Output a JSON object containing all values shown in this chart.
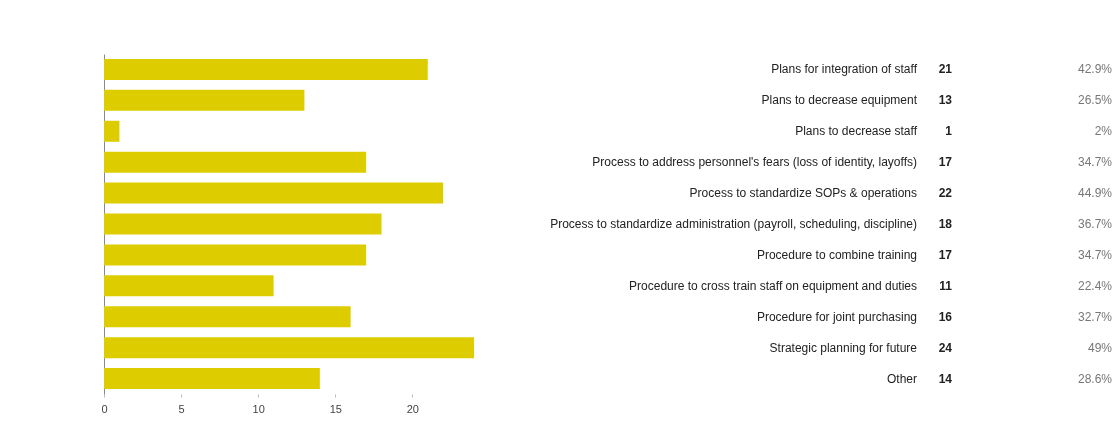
{
  "chart_data": {
    "type": "bar",
    "orientation": "horizontal",
    "categories": [
      "Plans for integration of staff",
      "Plans to decrease equipment",
      "Plans to decrease staff",
      "Process to address personnel's fears (loss of identity, layoffs)",
      "Process to standardize SOPs & operations",
      "Process to standardize administration (payroll, scheduling, discipline)",
      "Procedure to combine training",
      "Procedure to cross train staff on equipment and duties",
      "Procedure for joint purchasing",
      "Strategic planning for future",
      "Other"
    ],
    "values": [
      21,
      13,
      1,
      17,
      22,
      18,
      17,
      11,
      16,
      24,
      14
    ],
    "annotations": [
      "42.9%",
      "26.5%",
      "2%",
      "34.7%",
      "44.9%",
      "36.7%",
      "34.7%",
      "22.4%",
      "32.7%",
      "49%",
      "28.6%"
    ],
    "data_labels": true,
    "color": "#ddcc00",
    "xlim": [
      0,
      24
    ],
    "xticks": [
      0,
      5,
      10,
      15,
      20
    ],
    "tick_labels": "x",
    "grid": false
  }
}
